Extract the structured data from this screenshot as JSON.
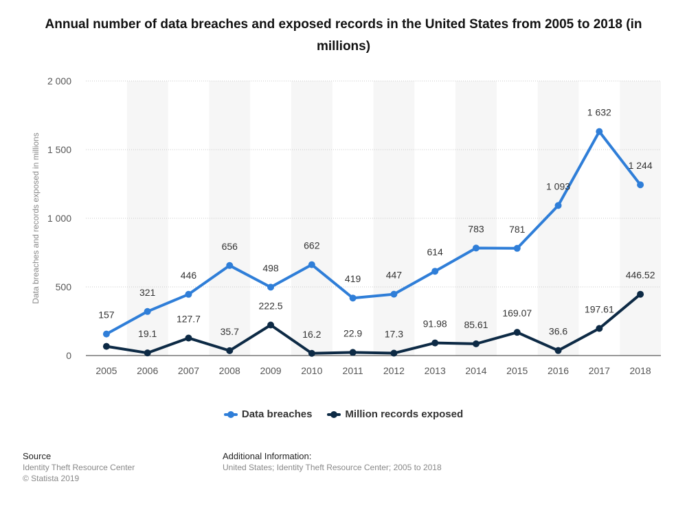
{
  "chart_data": {
    "type": "line",
    "title": "Annual number of data breaches and exposed records in the United States from 2005 to 2018 (in millions)",
    "ylabel": "Data breaches and records exposed in millions",
    "xlabel": "",
    "ylim": [
      0,
      2000
    ],
    "yticks": [
      0,
      500,
      1000,
      1500,
      2000
    ],
    "ytick_labels": [
      "0",
      "500",
      "1 000",
      "1 500",
      "2 000"
    ],
    "categories": [
      "2005",
      "2006",
      "2007",
      "2008",
      "2009",
      "2010",
      "2011",
      "2012",
      "2013",
      "2014",
      "2015",
      "2016",
      "2017",
      "2018"
    ],
    "grid": true,
    "legend_position": "bottom",
    "series": [
      {
        "name": "Data breaches",
        "color": "#2f7ed8",
        "values": [
          157,
          321,
          446,
          656,
          498,
          662,
          419,
          447,
          614,
          783,
          781,
          1093,
          1632,
          1244
        ],
        "labels": [
          "157",
          "321",
          "446",
          "656",
          "498",
          "662",
          "419",
          "447",
          "614",
          "783",
          "781",
          "1 093",
          "1 632",
          "1 244"
        ]
      },
      {
        "name": "Million records exposed",
        "color": "#0d2a45",
        "values": [
          66.9,
          19.1,
          127.7,
          35.7,
          222.5,
          16.2,
          22.9,
          17.3,
          91.98,
          85.61,
          169.07,
          36.6,
          197.61,
          446.52
        ],
        "labels": [
          "",
          "19.1",
          "127.7",
          "35.7",
          "222.5",
          "16.2",
          "22.9",
          "17.3",
          "91.98",
          "85.61",
          "169.07",
          "36.6",
          "197.61",
          "446.52"
        ]
      }
    ]
  },
  "footer": {
    "source_heading": "Source",
    "source_line1": "Identity Theft Resource Center",
    "source_line2": "© Statista 2019",
    "additional_heading": "Additional Information:",
    "additional_text": "United States; Identity Theft Resource Center; 2005 to 2018"
  }
}
